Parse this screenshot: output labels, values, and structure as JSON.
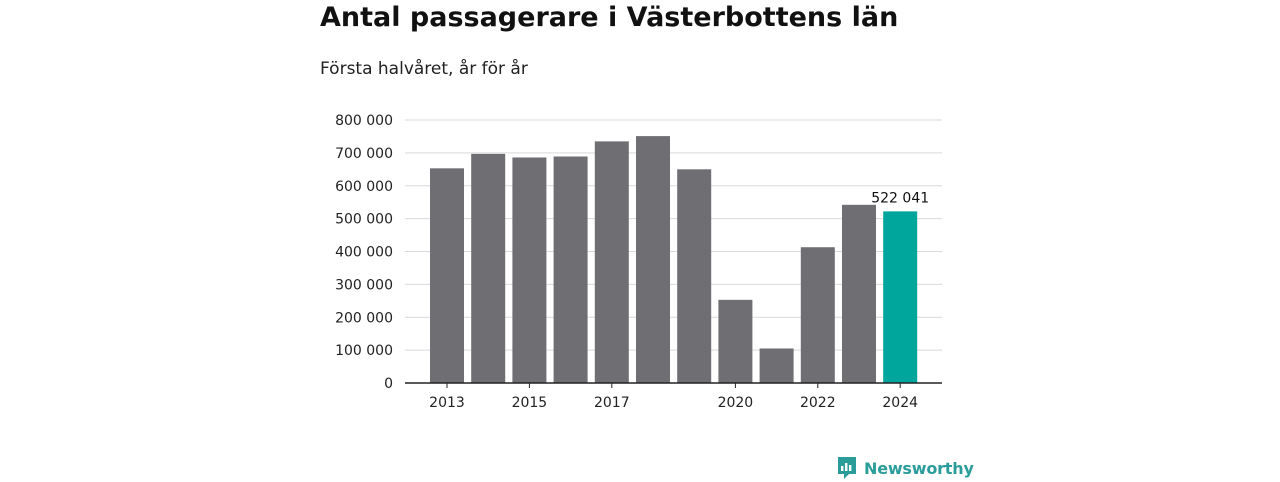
{
  "title": "Antal passagerare i Västerbottens län",
  "subtitle": "Första halvåret, år för år",
  "brand": {
    "name": "Newsworthy",
    "icon": "newsworthy-logo-icon",
    "color": "#2a9d9a"
  },
  "chart_data": {
    "type": "bar",
    "categories": [
      "2013",
      "2014",
      "2015",
      "2016",
      "2017",
      "2018",
      "2019",
      "2020",
      "2021",
      "2022",
      "2023",
      "2024"
    ],
    "x_tick_labels": [
      "2013",
      "",
      "2015",
      "",
      "2017",
      "",
      "",
      "2020",
      "",
      "2022",
      "",
      "2024"
    ],
    "values": [
      653000,
      697000,
      686000,
      689000,
      735000,
      751000,
      650000,
      253000,
      105000,
      413000,
      542000,
      522041
    ],
    "highlight_index": 11,
    "highlight_label": "522 041",
    "colors": {
      "bar": "#6f6e73",
      "highlight": "#00a59b",
      "grid": "#d9d9d9",
      "axis": "#222222"
    },
    "ylim": [
      0,
      800000
    ],
    "y_ticks": [
      0,
      100000,
      200000,
      300000,
      400000,
      500000,
      600000,
      700000,
      800000
    ],
    "y_tick_labels": [
      "0",
      "100 000",
      "200 000",
      "300 000",
      "400 000",
      "500 000",
      "600 000",
      "700 000",
      "800 000"
    ],
    "grid": true,
    "legend": "none"
  }
}
